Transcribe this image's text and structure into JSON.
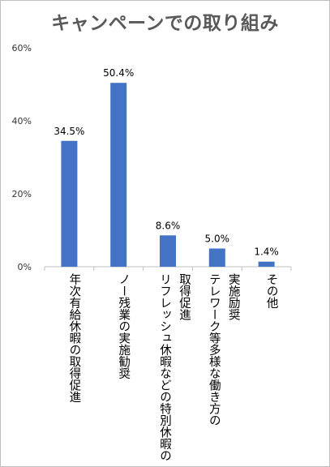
{
  "chart_data": {
    "type": "bar",
    "title": "キャンペーンでの取り組み",
    "categories": [
      [
        "年次有給休暇の取得促進"
      ],
      [
        "ノー残業の実施勧奨"
      ],
      [
        "リフレッシュ休暇などの特別休暇の",
        "取得促進"
      ],
      [
        "テレワーク等多様な働き方の",
        "実施励奨"
      ],
      [
        "その他"
      ]
    ],
    "values": [
      34.5,
      50.4,
      8.6,
      5.0,
      1.4
    ],
    "value_labels": [
      "34.5%",
      "50.4%",
      "8.6%",
      "5.0%",
      "1.4%"
    ],
    "ylim": [
      0,
      60
    ],
    "yticks": [
      0,
      20,
      40,
      60
    ],
    "ytick_labels": [
      "0%",
      "20%",
      "40%",
      "60%"
    ],
    "bar_color": "#4472c4",
    "grid": false,
    "legend": "none"
  }
}
